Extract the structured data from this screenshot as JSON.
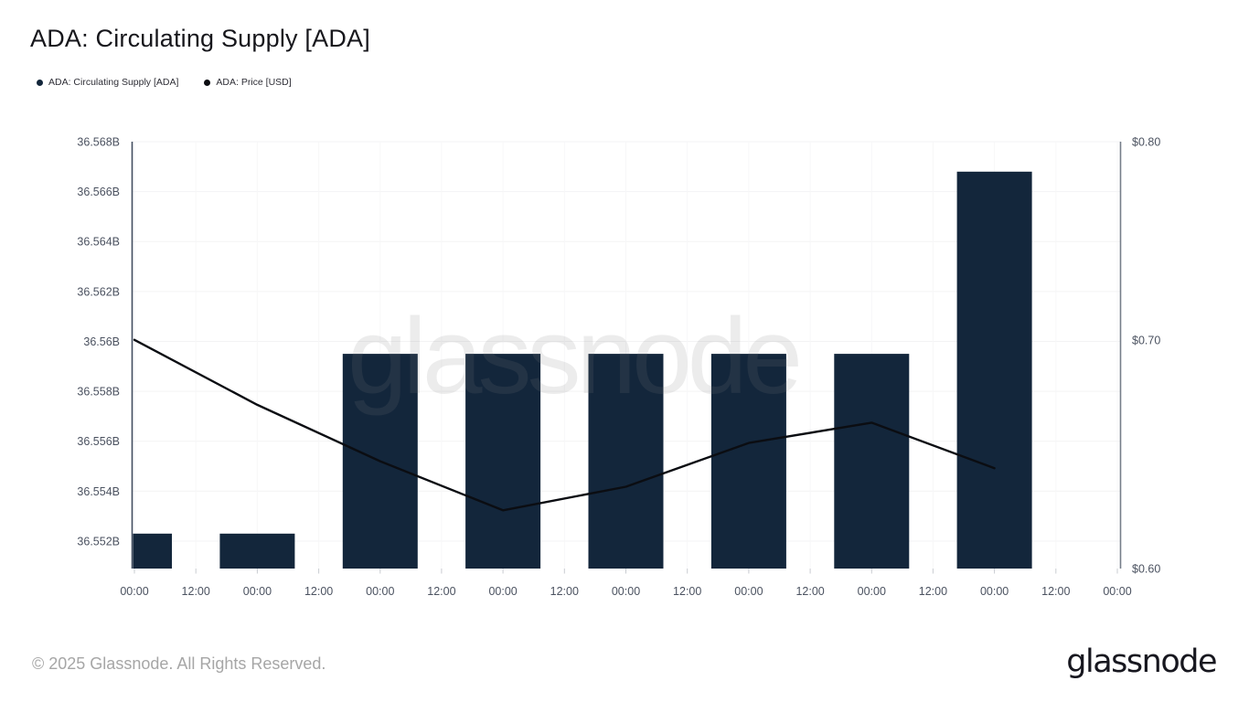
{
  "header": {
    "title": "ADA: Circulating Supply [ADA]"
  },
  "legend": [
    {
      "label": "ADA: Circulating Supply [ADA]",
      "color": "#13263b"
    },
    {
      "label": "ADA: Price [USD]",
      "color": "#0b0d12"
    }
  ],
  "watermark_text": "glassnode",
  "footer": {
    "copyright": "© 2025 Glassnode. All Rights Reserved.",
    "logo_text": "glassnode"
  },
  "chart_data": {
    "type": "bar",
    "combo": "bar+line-dual-axis",
    "title": "ADA: Circulating Supply [ADA]",
    "x_axis": {
      "tick_labels": [
        "00:00",
        "12:00",
        "00:00",
        "12:00",
        "00:00",
        "12:00",
        "00:00",
        "12:00",
        "00:00",
        "12:00",
        "00:00",
        "12:00",
        "00:00",
        "12:00",
        "00:00",
        "12:00",
        "00:00"
      ],
      "note": "8 daily bars, each centered on a 00:00 tick; first bar clipped by left axis"
    },
    "left_axis": {
      "tick_labels": [
        "36.568B",
        "36.566B",
        "36.564B",
        "36.562B",
        "36.56B",
        "36.558B",
        "36.556B",
        "36.554B",
        "36.552B"
      ],
      "tick_values": [
        36.568,
        36.566,
        36.564,
        36.562,
        36.56,
        36.558,
        36.556,
        36.554,
        36.552
      ],
      "min": 36.5509,
      "max": 36.568,
      "scale": "linear",
      "unit": "B ADA"
    },
    "right_axis": {
      "tick_labels": [
        "$0.80",
        "$0.70",
        "$0.60"
      ],
      "tick_values": [
        0.8,
        0.7,
        0.6
      ],
      "min": 0.6,
      "max": 0.8,
      "scale": "log",
      "unit": "USD"
    },
    "series": [
      {
        "name": "ADA: Circulating Supply [ADA]",
        "type": "bar",
        "unit": "B",
        "values": [
          36.5523,
          36.5523,
          36.5595,
          36.5595,
          36.5595,
          36.5595,
          36.5595,
          36.5668
        ]
      },
      {
        "name": "ADA: Price [USD]",
        "type": "line",
        "unit": "USD",
        "values": [
          0.7,
          0.67,
          0.645,
          0.624,
          0.634,
          0.653,
          0.662,
          0.642
        ]
      }
    ],
    "grid": "on",
    "legend_position": "top-left",
    "colors": {
      "bar": "#13263b",
      "line": "#0b0d12",
      "grid": "#f3f3f4",
      "grid_vertical": "#f7f7f8",
      "axis_left": "#434e60",
      "axis_right": "#767e8a",
      "tick_text": "#4b5260",
      "tick_mark": "#c9ccd1",
      "watermark": "#7d7d7d"
    }
  }
}
